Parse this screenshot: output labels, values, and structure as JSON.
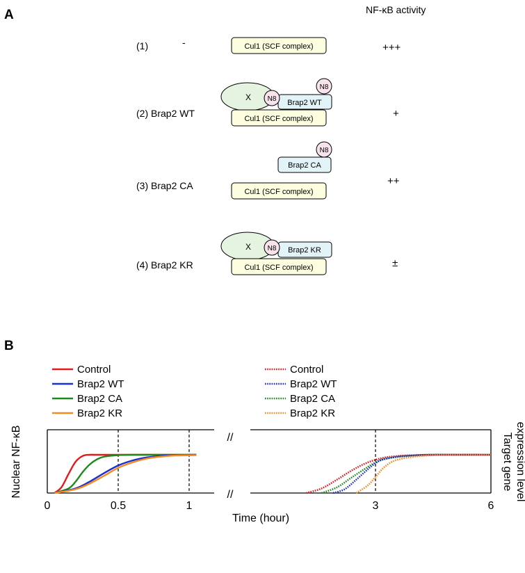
{
  "panel_a": {
    "label": "A",
    "header": "NF-κB activity",
    "rows": [
      {
        "name": "(1)",
        "treatment": "-",
        "cul1": "Cul1 (SCF complex)",
        "activity": "+++"
      },
      {
        "name": "(2) Brap2 WT",
        "cul1": "Cul1 (SCF complex)",
        "brap2": "Brap2 WT",
        "x": "X",
        "n8_a": "N8",
        "n8_b": "N8",
        "activity": "+"
      },
      {
        "name": "(3) Brap2 CA",
        "cul1": "Cul1 (SCF complex)",
        "brap2": "Brap2 CA",
        "n8": "N8",
        "activity": "++"
      },
      {
        "name": "(4) Brap2 KR",
        "cul1": "Cul1 (SCF complex)",
        "brap2": "Brap2 KR",
        "x": "X",
        "n8": "N8",
        "activity": "±"
      }
    ],
    "colors": {
      "cul1_fill": "#fdfde0",
      "brap2_fill": "#e2f4f8",
      "x_fill": "#e4f4e0",
      "n8_fill": "#f8e2ec"
    }
  },
  "panel_b": {
    "label": "B",
    "ylabel_left": "Nuclear NF-κB",
    "ylabel_right_1": "Target gene",
    "ylabel_right_2": "expression level",
    "xlabel": "Time (hour)",
    "break_mark": "//",
    "legend_left": [
      "Control",
      "Brap2 WT",
      "Brap2 CA",
      "Brap2 KR"
    ],
    "legend_right": [
      "Control",
      "Brap2 WT",
      "Brap2 CA",
      "Brap2 KR"
    ],
    "series_colors": [
      "#e31a1c",
      "#1a2fd0",
      "#1a8a1a",
      "#f58a1f"
    ]
  },
  "chart_data": {
    "type": "line",
    "xlabel": "Time (hour)",
    "ylabel": "Nuclear NF-κB",
    "ylabel_right": "Target gene expression level",
    "x_ticks_left": [
      "0",
      "0.5",
      "1"
    ],
    "x_ticks_right": [
      "3",
      "6"
    ],
    "xlim_left": [
      0,
      1.05
    ],
    "xlim_right": [
      1.2,
      6
    ],
    "ylim": [
      0,
      1
    ],
    "axis_break": "between 1 and the right segment",
    "reference_lines_x": [
      0.5,
      1,
      3
    ],
    "series": [
      {
        "name": "Control",
        "style": "solid",
        "segment": "left",
        "x": [
          0.05,
          0.1,
          0.15,
          0.2,
          0.25,
          0.3,
          0.4,
          1.05
        ],
        "y": [
          0.0,
          0.15,
          0.5,
          0.82,
          0.97,
          1.0,
          1.0,
          1.0
        ]
      },
      {
        "name": "Brap2 CA",
        "style": "solid",
        "segment": "left",
        "x": [
          0.05,
          0.15,
          0.2,
          0.25,
          0.3,
          0.35,
          0.4,
          0.5,
          0.6,
          1.05
        ],
        "y": [
          0.0,
          0.12,
          0.3,
          0.55,
          0.75,
          0.88,
          0.95,
          0.99,
          1.0,
          1.0
        ]
      },
      {
        "name": "Brap2 WT",
        "style": "solid",
        "segment": "left",
        "x": [
          0.05,
          0.2,
          0.3,
          0.4,
          0.5,
          0.6,
          0.7,
          0.8,
          0.9,
          1.05
        ],
        "y": [
          0.0,
          0.12,
          0.3,
          0.52,
          0.72,
          0.85,
          0.93,
          0.97,
          0.99,
          1.0
        ]
      },
      {
        "name": "Brap2 KR",
        "style": "solid",
        "segment": "left",
        "x": [
          0.05,
          0.2,
          0.3,
          0.4,
          0.5,
          0.6,
          0.7,
          0.8,
          0.9,
          1.05
        ],
        "y": [
          0.0,
          0.1,
          0.25,
          0.45,
          0.66,
          0.8,
          0.9,
          0.95,
          0.98,
          0.99
        ]
      },
      {
        "name": "Control",
        "style": "dotted",
        "segment": "right",
        "x": [
          1.2,
          1.6,
          2.0,
          2.4,
          2.8,
          3.2,
          3.6,
          4.0,
          4.5,
          6
        ],
        "y": [
          0.0,
          0.12,
          0.35,
          0.6,
          0.8,
          0.92,
          0.97,
          0.99,
          1.0,
          1.0
        ]
      },
      {
        "name": "Brap2 CA",
        "style": "dotted",
        "segment": "right",
        "x": [
          1.6,
          2.0,
          2.4,
          2.8,
          3.0,
          3.2,
          3.6,
          4.0,
          4.5,
          6
        ],
        "y": [
          0.0,
          0.15,
          0.42,
          0.68,
          0.8,
          0.88,
          0.95,
          0.98,
          1.0,
          1.0
        ]
      },
      {
        "name": "Brap2 WT",
        "style": "dotted",
        "segment": "right",
        "x": [
          1.9,
          2.2,
          2.5,
          2.8,
          3.0,
          3.2,
          3.6,
          4.0,
          4.5,
          6
        ],
        "y": [
          0.0,
          0.1,
          0.35,
          0.62,
          0.78,
          0.88,
          0.95,
          0.98,
          1.0,
          1.0
        ]
      },
      {
        "name": "Brap2 KR",
        "style": "dotted",
        "segment": "right",
        "x": [
          2.5,
          2.8,
          3.0,
          3.2,
          3.4,
          3.6,
          4.0,
          4.5,
          5.0,
          6
        ],
        "y": [
          0.0,
          0.2,
          0.42,
          0.65,
          0.8,
          0.88,
          0.95,
          0.99,
          1.0,
          1.0
        ]
      }
    ]
  }
}
